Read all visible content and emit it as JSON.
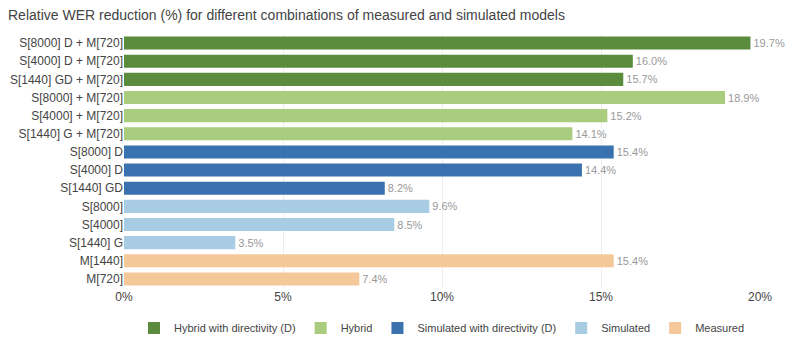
{
  "chart_data": {
    "type": "bar",
    "orientation": "horizontal",
    "title": "Relative WER reduction (%) for different combinations of measured and simulated models",
    "categories": [
      "S[8000] D + M[720]",
      "S[4000] D + M[720]",
      "S[1440] GD + M[720]",
      "S[8000] + M[720]",
      "S[4000] + M[720]",
      "S[1440] G + M[720]",
      "S[8000] D",
      "S[4000] D",
      "S[1440] GD",
      "S[8000]",
      "S[4000]",
      "S[1440] G",
      "M[1440]",
      "M[720]"
    ],
    "series": [
      {
        "name": "Hybrid with directivity (D)",
        "color": "#5b8c3e",
        "values": [
          19.7,
          16.0,
          15.7,
          null,
          null,
          null,
          null,
          null,
          null,
          null,
          null,
          null,
          null,
          null
        ],
        "value_labels": [
          "19.7%",
          "16.0%",
          "15.7%",
          null,
          null,
          null,
          null,
          null,
          null,
          null,
          null,
          null,
          null,
          null
        ]
      },
      {
        "name": "Hybrid",
        "color": "#a9cc7e",
        "values": [
          null,
          null,
          null,
          18.9,
          15.2,
          14.1,
          null,
          null,
          null,
          null,
          null,
          null,
          null,
          null
        ],
        "value_labels": [
          null,
          null,
          null,
          "18.9%",
          "15.2%",
          "14.1%",
          null,
          null,
          null,
          null,
          null,
          null,
          null,
          null
        ]
      },
      {
        "name": "Simulated with directivity (D)",
        "color": "#3a72b0",
        "values": [
          null,
          null,
          null,
          null,
          null,
          null,
          15.4,
          14.4,
          8.2,
          null,
          null,
          null,
          null,
          null
        ],
        "value_labels": [
          null,
          null,
          null,
          null,
          null,
          null,
          "15.4%",
          "14.4%",
          "8.2%",
          null,
          null,
          null,
          null,
          null
        ]
      },
      {
        "name": "Simulated",
        "color": "#a8cce4",
        "values": [
          null,
          null,
          null,
          null,
          null,
          null,
          null,
          null,
          null,
          9.6,
          8.5,
          3.5,
          null,
          null
        ],
        "value_labels": [
          null,
          null,
          null,
          null,
          null,
          null,
          null,
          null,
          null,
          "9.6%",
          "8.5%",
          "3.5%",
          null,
          null
        ]
      },
      {
        "name": "Measured",
        "color": "#f5c89a",
        "values": [
          null,
          null,
          null,
          null,
          null,
          null,
          null,
          null,
          null,
          null,
          null,
          null,
          15.4,
          7.4
        ],
        "value_labels": [
          null,
          null,
          null,
          null,
          null,
          null,
          null,
          null,
          null,
          null,
          null,
          null,
          "15.4%",
          "7.4%"
        ]
      }
    ],
    "xlim": [
      0,
      20
    ],
    "xticks": [
      {
        "value": 0,
        "label": "0%"
      },
      {
        "value": 5,
        "label": "5%"
      },
      {
        "value": 10,
        "label": "10%"
      },
      {
        "value": 15,
        "label": "15%"
      },
      {
        "value": 20,
        "label": "20%"
      }
    ],
    "grid": true,
    "legend": "bottom",
    "data_labels": true
  }
}
